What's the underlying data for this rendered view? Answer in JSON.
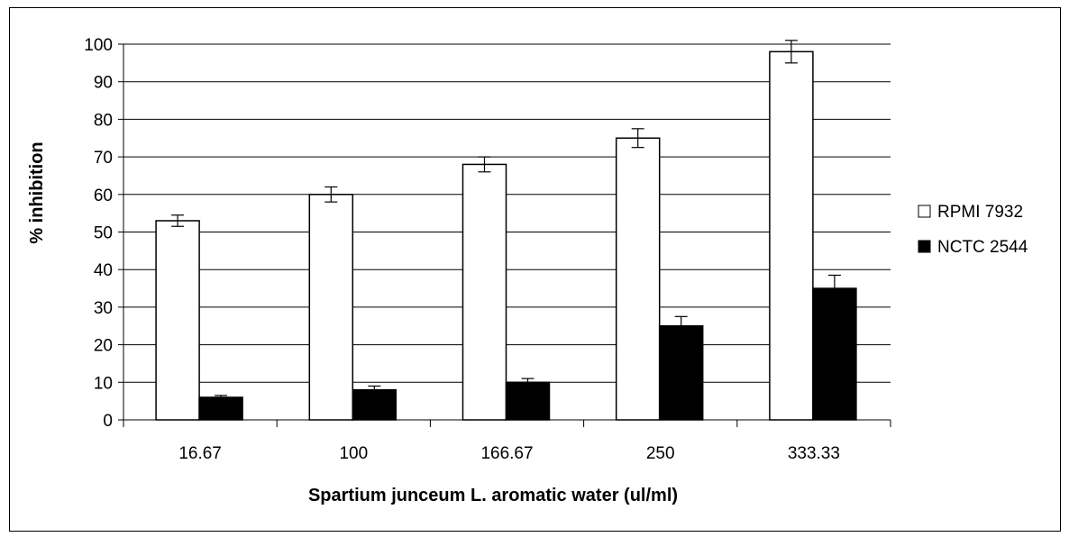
{
  "chart_data": {
    "type": "bar",
    "title": "",
    "xlabel": "Spartium junceum L. aromatic water (ul/ml)",
    "ylabel": "% inhibition",
    "categories": [
      "16.67",
      "100",
      "166.67",
      "250",
      "333.33"
    ],
    "ylim": [
      0,
      100
    ],
    "yticks": [
      0,
      10,
      20,
      30,
      40,
      50,
      60,
      70,
      80,
      90,
      100
    ],
    "grid": true,
    "legend_position": "right",
    "series": [
      {
        "name": "RPMI 7932",
        "color": "#ffffff",
        "values": [
          53,
          60,
          68,
          75,
          98
        ],
        "errors": [
          1.5,
          2,
          2,
          2.5,
          3
        ]
      },
      {
        "name": "NCTC 2544",
        "color": "#000000",
        "values": [
          6,
          8,
          10,
          25,
          35
        ],
        "errors": [
          0.5,
          1,
          1,
          2.5,
          3.5
        ]
      }
    ]
  }
}
